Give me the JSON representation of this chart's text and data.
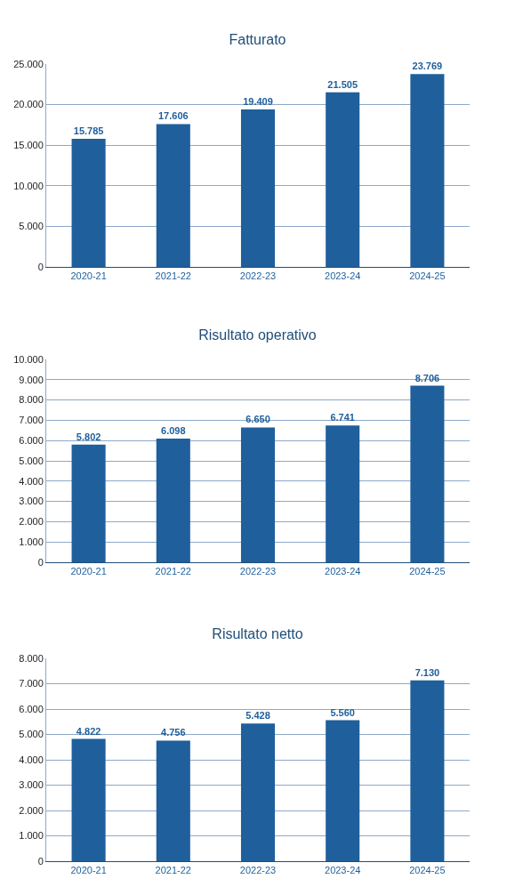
{
  "chart_data": [
    {
      "type": "bar",
      "title": "Fatturato",
      "categories": [
        "2020-21",
        "2021-22",
        "2022-23",
        "2023-24",
        "2024-25"
      ],
      "values": [
        15785,
        17606,
        19409,
        21505,
        23769
      ],
      "value_labels": [
        "15.785",
        "17.606",
        "19.409",
        "21.505",
        "23.769"
      ],
      "color": "#1f5f9c",
      "ylim": [
        0,
        25000
      ],
      "yticks": [
        {
          "value": 0,
          "label": "0"
        },
        {
          "value": 5000,
          "label": "5.000"
        },
        {
          "value": 10000,
          "label": "10.000"
        },
        {
          "value": 15000,
          "label": "15.000"
        },
        {
          "value": 20000,
          "label": "20.000"
        },
        {
          "value": 25000,
          "label": "25.000"
        }
      ],
      "grid": "y"
    },
    {
      "type": "bar",
      "title": "Risultato operativo",
      "categories": [
        "2020-21",
        "2021-22",
        "2022-23",
        "2023-24",
        "2024-25"
      ],
      "values": [
        5802,
        6098,
        6650,
        6741,
        8706
      ],
      "value_labels": [
        "5.802",
        "6.098",
        "6.650",
        "6.741",
        "8.706"
      ],
      "color": "#1f5f9c",
      "ylim": [
        0,
        10000
      ],
      "yticks": [
        {
          "value": 0,
          "label": "0"
        },
        {
          "value": 1000,
          "label": "1.000"
        },
        {
          "value": 2000,
          "label": "2.000"
        },
        {
          "value": 3000,
          "label": "3.000"
        },
        {
          "value": 4000,
          "label": "4.000"
        },
        {
          "value": 5000,
          "label": "5.000"
        },
        {
          "value": 6000,
          "label": "6.000"
        },
        {
          "value": 7000,
          "label": "7.000"
        },
        {
          "value": 8000,
          "label": "8.000"
        },
        {
          "value": 9000,
          "label": "9.000"
        },
        {
          "value": 10000,
          "label": "10.000"
        }
      ],
      "grid": "y"
    },
    {
      "type": "bar",
      "title": "Risultato netto",
      "categories": [
        "2020-21",
        "2021-22",
        "2022-23",
        "2023-24",
        "2024-25"
      ],
      "values": [
        4822,
        4756,
        5428,
        5560,
        7130
      ],
      "value_labels": [
        "4.822",
        "4.756",
        "5.428",
        "5.560",
        "7.130"
      ],
      "color": "#1f5f9c",
      "ylim": [
        0,
        8000
      ],
      "yticks": [
        {
          "value": 0,
          "label": "0"
        },
        {
          "value": 1000,
          "label": "1.000"
        },
        {
          "value": 2000,
          "label": "2.000"
        },
        {
          "value": 3000,
          "label": "3.000"
        },
        {
          "value": 4000,
          "label": "4.000"
        },
        {
          "value": 5000,
          "label": "5.000"
        },
        {
          "value": 6000,
          "label": "6.000"
        },
        {
          "value": 7000,
          "label": "7.000"
        },
        {
          "value": 8000,
          "label": "8.000"
        }
      ],
      "grid": "y"
    }
  ]
}
